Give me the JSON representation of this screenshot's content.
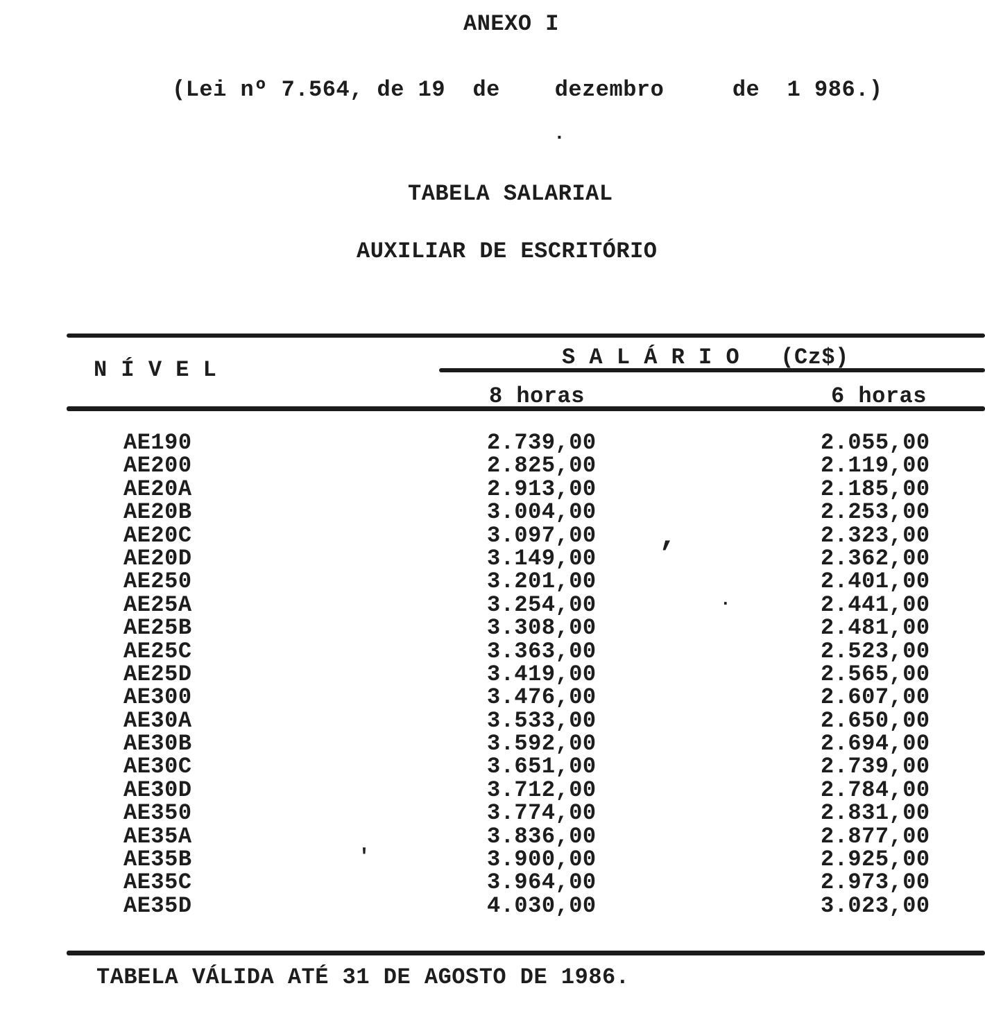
{
  "page": {
    "annex_title": "ANEXO I",
    "law_reference": "(Lei nº 7.564, de 19  de    dezembro     de  1 986.)",
    "table_title": "TABELA SALARIAL",
    "table_subtitle": "AUXILIAR DE ESCRITÓRIO",
    "footer_note": "TABELA VÁLIDA ATÉ 31 DE AGOSTO DE 1986."
  },
  "table": {
    "level_header": "N Í V E L",
    "salary_group_header": "S A L Á R I O   (Cz$)",
    "col_8h": "8 horas",
    "col_6h": "6 horas",
    "rows": [
      {
        "level": "AE190",
        "h8": "2.739,00",
        "h6": "2.055,00"
      },
      {
        "level": "AE200",
        "h8": "2.825,00",
        "h6": "2.119,00"
      },
      {
        "level": "AE20A",
        "h8": "2.913,00",
        "h6": "2.185,00"
      },
      {
        "level": "AE20B",
        "h8": "3.004,00",
        "h6": "2.253,00"
      },
      {
        "level": "AE20C",
        "h8": "3.097,00",
        "h6": "2.323,00"
      },
      {
        "level": "AE20D",
        "h8": "3.149,00",
        "h6": "2.362,00"
      },
      {
        "level": "AE250",
        "h8": "3.201,00",
        "h6": "2.401,00"
      },
      {
        "level": "AE25A",
        "h8": "3.254,00",
        "h6": "2.441,00"
      },
      {
        "level": "AE25B",
        "h8": "3.308,00",
        "h6": "2.481,00"
      },
      {
        "level": "AE25C",
        "h8": "3.363,00",
        "h6": "2.523,00"
      },
      {
        "level": "AE25D",
        "h8": "3.419,00",
        "h6": "2.565,00"
      },
      {
        "level": "AE300",
        "h8": "3.476,00",
        "h6": "2.607,00"
      },
      {
        "level": "AE30A",
        "h8": "3.533,00",
        "h6": "2.650,00"
      },
      {
        "level": "AE30B",
        "h8": "3.592,00",
        "h6": "2.694,00"
      },
      {
        "level": "AE30C",
        "h8": "3.651,00",
        "h6": "2.739,00"
      },
      {
        "level": "AE30D",
        "h8": "3.712,00",
        "h6": "2.784,00"
      },
      {
        "level": "AE350",
        "h8": "3.774,00",
        "h6": "2.831,00"
      },
      {
        "level": "AE35A",
        "h8": "3.836,00",
        "h6": "2.877,00"
      },
      {
        "level": "AE35B",
        "h8": "3.900,00",
        "h6": "2.925,00"
      },
      {
        "level": "AE35C",
        "h8": "3.964,00",
        "h6": "2.973,00"
      },
      {
        "level": "AE35D",
        "h8": "4.030,00",
        "h6": "3.023,00"
      }
    ]
  },
  "scan_marks": {
    "comma": ",",
    "tick": "'",
    "dot1": ".",
    "dot2": "."
  },
  "colors": {
    "ink": "#1d1d1d",
    "paper": "#ffffff"
  }
}
